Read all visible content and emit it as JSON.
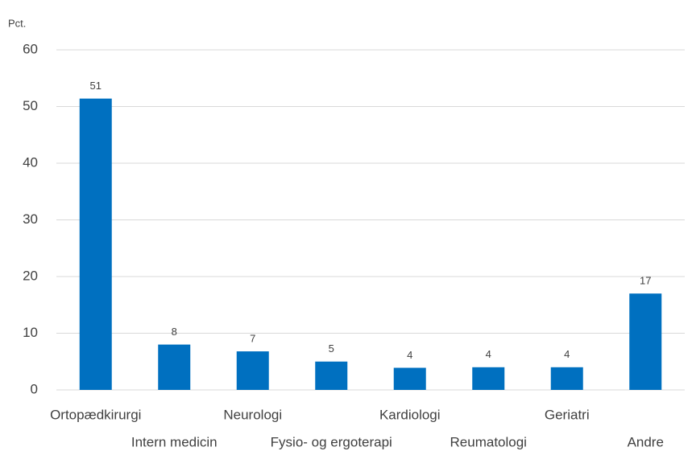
{
  "chart_data": {
    "type": "bar",
    "y_unit_label": "Pct.",
    "categories": [
      "Ortopædkirurgi",
      "Intern medicin",
      "Neurologi",
      "Fysio- og ergoterapi",
      "Kardiologi",
      "Reumatologi",
      "Geriatri",
      "Andre"
    ],
    "values": [
      51.4,
      8,
      6.8,
      5,
      3.9,
      4,
      4,
      17
    ],
    "value_labels": [
      "51",
      "8",
      "7",
      "5",
      "4",
      "4",
      "4",
      "17"
    ],
    "color": "#0070c0",
    "ylim": [
      0,
      60
    ],
    "yticks": [
      0,
      10,
      20,
      30,
      40,
      50,
      60
    ],
    "grid": true
  }
}
